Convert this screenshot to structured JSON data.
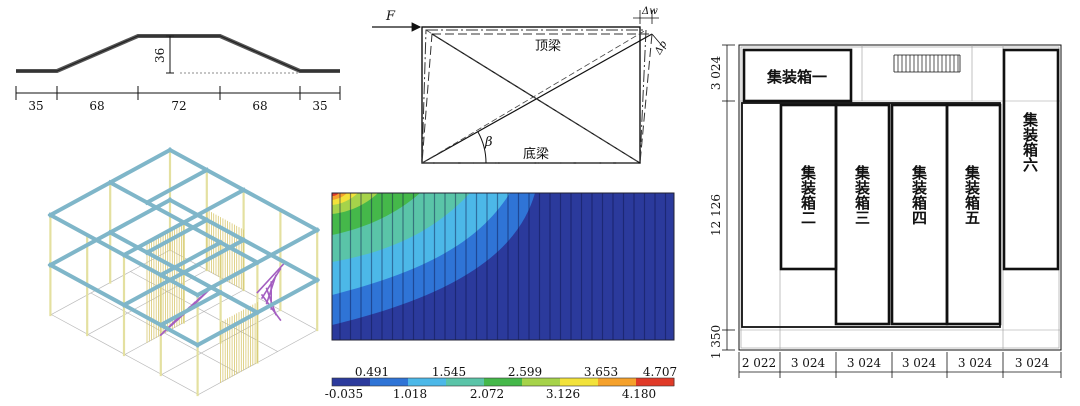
{
  "profile": {
    "height_label": "36",
    "widths": [
      "35",
      "68",
      "72",
      "68",
      "35"
    ]
  },
  "frame": {
    "force_label": "F",
    "delta_w_label": "Δw",
    "delta_p_label": "Δp",
    "angle_label": "β",
    "top_beam_label": "顶梁",
    "bottom_beam_label": "底梁"
  },
  "contour": {
    "scale_upper": [
      "0.491",
      "1.545",
      "2.599",
      "3.653",
      "4.707"
    ],
    "scale_lower": [
      "-0.035",
      "1.018",
      "2.072",
      "3.126",
      "4.180"
    ],
    "colors": [
      "#2b3a9c",
      "#2f74d6",
      "#4cb8e8",
      "#5ac4a8",
      "#45b84a",
      "#a6d34a",
      "#f2e23a",
      "#f5a12c",
      "#e03a28"
    ]
  },
  "plan": {
    "containers": [
      "集装箱一",
      "集装箱二",
      "集装箱三",
      "集装箱四",
      "集装箱五",
      "集装箱六"
    ],
    "left_dims": [
      "3 024",
      "12 126",
      "1 350"
    ],
    "bottom_dims": [
      "2 022",
      "3 024",
      "3 024",
      "3 024",
      "3 024",
      "3 024"
    ]
  }
}
